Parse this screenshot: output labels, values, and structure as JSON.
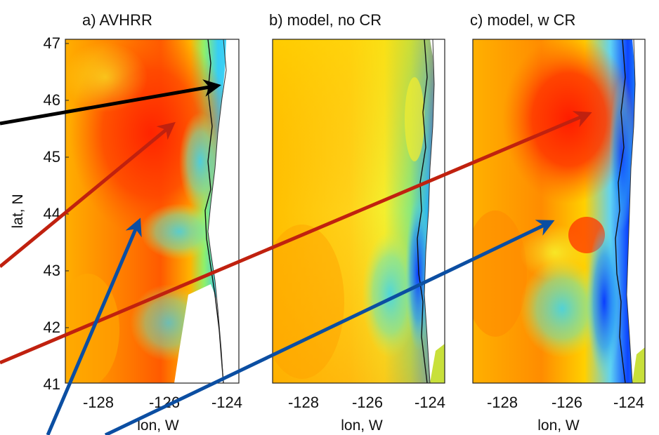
{
  "panels": [
    {
      "id": "a",
      "title": "a)  AVHRR",
      "xticks": [
        "-128",
        "-126",
        "-124"
      ],
      "xlabel": "lon, W"
    },
    {
      "id": "b",
      "title": "b) model, no CR",
      "xticks": [
        "-128",
        "-126",
        "-124"
      ],
      "xlabel": "lon, W"
    },
    {
      "id": "c",
      "title": "c) model, w CR",
      "xticks": [
        "-128",
        "-126",
        "-124"
      ],
      "xlabel": "lon, W"
    }
  ],
  "yaxis": {
    "label": "lat, N",
    "ticks": [
      "47",
      "46",
      "45",
      "44",
      "43",
      "42",
      "41"
    ]
  },
  "colors": {
    "arrow_black": "#000000",
    "arrow_red": "#c0210f",
    "arrow_blue": "#0b4ea2",
    "coastline": "#111111",
    "sst_warm": "#ff2a00",
    "sst_orange": "#ff9a00",
    "sst_yellow": "#f7ea22",
    "sst_cyan": "#40d2f0",
    "sst_blue": "#0038ff"
  },
  "arrows": [
    {
      "color_key": "arrow_black",
      "target": "Columbia River mouth (panel a)"
    },
    {
      "color_key": "arrow_red",
      "target": "warm plume (panel a)"
    },
    {
      "color_key": "arrow_red",
      "target": "warm plume (panel c)"
    },
    {
      "color_key": "arrow_blue",
      "target": "cold filament (panel a)"
    },
    {
      "color_key": "arrow_blue",
      "target": "cold eddy (panel c)"
    }
  ]
}
